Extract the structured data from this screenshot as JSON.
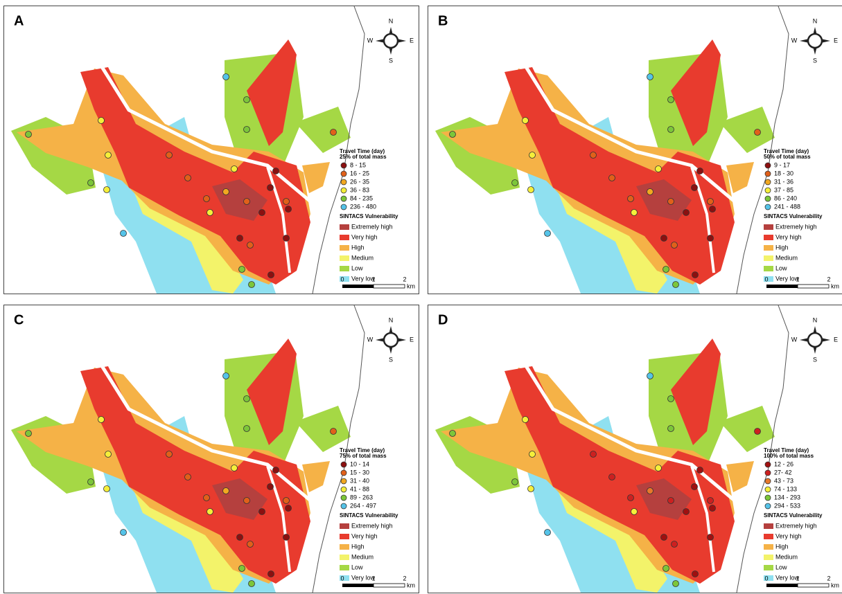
{
  "compass": {
    "n": "N",
    "s": "S",
    "e": "E",
    "w": "W"
  },
  "scale": {
    "ticks": [
      "0",
      "1",
      "2"
    ],
    "unit": "km"
  },
  "vulnerability": {
    "title": "SINTACS Vulnerability",
    "classes": [
      {
        "label": "Extremely high",
        "color": "#b5403e"
      },
      {
        "label": "Very high",
        "color": "#e83b2e"
      },
      {
        "label": "High",
        "color": "#f5b247"
      },
      {
        "label": "Medium",
        "color": "#f3f36a"
      },
      {
        "label": "Low",
        "color": "#a5d845"
      },
      {
        "label": "Very low",
        "color": "#8fe0f0"
      }
    ]
  },
  "panels": [
    {
      "label": "A",
      "legend_title": "Travel Time (day)",
      "legend_subtitle": "25% of total  mass",
      "classes": [
        {
          "label": "8 - 15",
          "color": "#8b1010"
        },
        {
          "label": "16 - 25",
          "color": "#e0601a"
        },
        {
          "label": "26 - 35",
          "color": "#f2a820"
        },
        {
          "label": "36 - 83",
          "color": "#f5ef3a"
        },
        {
          "label": "84 - 235",
          "color": "#7cc63a"
        },
        {
          "label": "236 - 480",
          "color": "#55c3e8"
        }
      ]
    },
    {
      "label": "B",
      "legend_title": "Travel Time (day)",
      "legend_subtitle": "50% of total  mass",
      "classes": [
        {
          "label": "9 - 17",
          "color": "#8b1010"
        },
        {
          "label": "18 - 30",
          "color": "#e0601a"
        },
        {
          "label": "31 - 36",
          "color": "#f2a820"
        },
        {
          "label": "37 - 85",
          "color": "#f5ef3a"
        },
        {
          "label": "86 - 240",
          "color": "#7cc63a"
        },
        {
          "label": "241 - 488",
          "color": "#55c3e8"
        }
      ]
    },
    {
      "label": "C",
      "legend_title": "Travel Time (day)",
      "legend_subtitle": "75% of total  mass",
      "classes": [
        {
          "label": "10 - 14",
          "color": "#8b1010"
        },
        {
          "label": "15 - 30",
          "color": "#e0601a"
        },
        {
          "label": "31 - 40",
          "color": "#f2a820"
        },
        {
          "label": "41 - 88",
          "color": "#f5ef3a"
        },
        {
          "label": "89 - 263",
          "color": "#7cc63a"
        },
        {
          "label": "264 - 497",
          "color": "#55c3e8"
        }
      ]
    },
    {
      "label": "D",
      "legend_title": "Travel Time (day)",
      "legend_subtitle": "100% of total  mass",
      "classes": [
        {
          "label": "12 - 26",
          "color": "#a01010"
        },
        {
          "label": "27- 42",
          "color": "#cc2020"
        },
        {
          "label": "43 - 73",
          "color": "#e8782a"
        },
        {
          "label": "74 - 133",
          "color": "#f5ef3a"
        },
        {
          "label": "134 - 293",
          "color": "#7cc63a"
        },
        {
          "label": "294 - 533",
          "color": "#55c3e8"
        }
      ]
    }
  ]
}
